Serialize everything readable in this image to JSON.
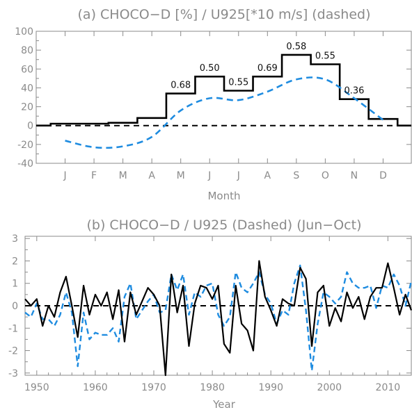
{
  "chart_data": [
    {
      "type": "line",
      "title": "(a) CHOCO−D [%] / U925[*10 m/s] (dashed)",
      "xlabel": "Month",
      "ylabel": "",
      "ylim": [
        -40,
        100
      ],
      "yticks": [
        -40,
        -20,
        0,
        20,
        40,
        60,
        80,
        100
      ],
      "categories": [
        "J",
        "F",
        "M",
        "A",
        "M",
        "J",
        "J",
        "A",
        "S",
        "O",
        "N",
        "D"
      ],
      "zero_line": "dashed",
      "series": [
        {
          "style": "solid-step",
          "color": "#000000",
          "values": [
            2,
            2,
            3,
            8,
            34,
            52,
            37,
            52,
            75,
            65,
            28,
            7
          ]
        },
        {
          "style": "dashed",
          "color": "#1f8ce0",
          "values": [
            -16,
            -23,
            -22,
            -12,
            16,
            29,
            27,
            36,
            49,
            49,
            29,
            6
          ]
        }
      ],
      "annotations": [
        {
          "month": 5,
          "text": "0.68"
        },
        {
          "month": 6,
          "text": "0.50"
        },
        {
          "month": 7,
          "text": "0.55"
        },
        {
          "month": 8,
          "text": "0.69"
        },
        {
          "month": 9,
          "text": "0.58"
        },
        {
          "month": 10,
          "text": "0.55"
        },
        {
          "month": 11,
          "text": "0.36"
        }
      ]
    },
    {
      "type": "line",
      "title": "(b) CHOCO−D / U925 (Dashed)  (Jun−Oct)",
      "xlabel": "Year",
      "ylabel": "",
      "xlim": [
        1948,
        2014
      ],
      "ylim": [
        -3.1,
        3.1
      ],
      "xticks": [
        1950,
        1960,
        1970,
        1980,
        1990,
        2000,
        2010
      ],
      "yticks": [
        -3,
        -2,
        -1,
        0,
        1,
        2,
        3
      ],
      "zero_line": "dashed",
      "x": [
        1948,
        1949,
        1950,
        1951,
        1952,
        1953,
        1954,
        1955,
        1956,
        1957,
        1958,
        1959,
        1960,
        1961,
        1962,
        1963,
        1964,
        1965,
        1966,
        1967,
        1968,
        1969,
        1970,
        1971,
        1972,
        1973,
        1974,
        1975,
        1976,
        1977,
        1978,
        1979,
        1980,
        1981,
        1982,
        1983,
        1984,
        1985,
        1986,
        1987,
        1988,
        1989,
        1990,
        1991,
        1992,
        1993,
        1994,
        1995,
        1996,
        1997,
        1998,
        1999,
        2000,
        2001,
        2002,
        2003,
        2004,
        2005,
        2006,
        2007,
        2008,
        2009,
        2010,
        2011,
        2012,
        2013,
        2014
      ],
      "series": [
        {
          "style": "solid",
          "color": "#000000",
          "values": [
            0.3,
            0.0,
            0.3,
            -0.9,
            0.0,
            -0.5,
            0.6,
            1.3,
            0.0,
            -1.4,
            0.9,
            -0.4,
            0.5,
            0.0,
            0.6,
            -0.6,
            0.7,
            -1.6,
            0.6,
            -0.4,
            0.2,
            0.8,
            0.5,
            0.0,
            -3.1,
            1.4,
            -0.3,
            0.9,
            -1.8,
            0.1,
            0.9,
            0.8,
            0.3,
            0.9,
            -1.7,
            -2.1,
            0.9,
            -0.8,
            -1.1,
            -2.0,
            2.0,
            0.4,
            -0.2,
            -0.9,
            0.3,
            0.1,
            0.0,
            1.7,
            1.2,
            -1.8,
            0.6,
            0.9,
            -0.9,
            -0.1,
            -0.7,
            0.6,
            -0.1,
            0.4,
            -0.6,
            0.4,
            0.8,
            0.8,
            1.9,
            0.8,
            -0.4,
            0.5,
            -0.2
          ]
        },
        {
          "style": "dashed",
          "color": "#1f8ce0",
          "values": [
            -0.3,
            -0.5,
            0.1,
            -0.6,
            -0.6,
            -0.9,
            -0.4,
            0.6,
            -0.3,
            -2.7,
            -0.3,
            -1.5,
            -1.2,
            -1.3,
            -1.3,
            -1.0,
            -1.6,
            0.4,
            1.0,
            -0.6,
            -0.2,
            0.2,
            0.5,
            -0.3,
            -0.2,
            1.4,
            0.7,
            1.4,
            -0.4,
            0.6,
            0.4,
            0.9,
            1.0,
            -0.4,
            -0.9,
            -0.5,
            1.5,
            0.8,
            0.6,
            1.0,
            1.5,
            0.5,
            0.1,
            -0.8,
            -0.2,
            -0.4,
            1.0,
            1.8,
            -0.2,
            -2.9,
            -0.8,
            0.6,
            0.4,
            0.1,
            0.4,
            1.5,
            1.0,
            0.8,
            0.8,
            0.9,
            -0.1,
            0.9,
            0.8,
            1.4,
            0.9,
            0.0,
            1.1
          ]
        }
      ]
    }
  ]
}
